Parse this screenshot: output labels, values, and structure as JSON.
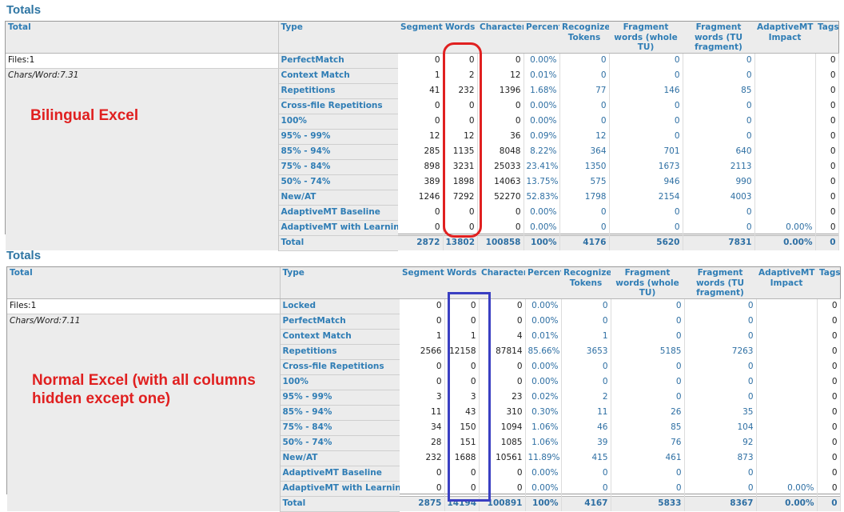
{
  "headers": [
    "Total",
    "Type",
    "Segments",
    "Words",
    "Characters",
    "Percent",
    "Recognized Tokens",
    "Fragment words (whole TU)",
    "Fragment words (TU fragment)",
    "AdaptiveMT Impact",
    "Tags"
  ],
  "reports": [
    {
      "title": "Totals",
      "files": "Files:1",
      "chars_per_word": "Chars/Word:7.31",
      "annotation": "Bilingual Excel",
      "rows": [
        {
          "type": "PerfectMatch",
          "segments": "0",
          "words": "0",
          "characters": "0",
          "percent": "0.00%",
          "tokens": "0",
          "frag_whole": "0",
          "frag_tu": "0",
          "impact": "",
          "tags": "0"
        },
        {
          "type": "Context Match",
          "segments": "1",
          "words": "2",
          "characters": "12",
          "percent": "0.01%",
          "tokens": "0",
          "frag_whole": "0",
          "frag_tu": "0",
          "impact": "",
          "tags": "0"
        },
        {
          "type": "Repetitions",
          "segments": "41",
          "words": "232",
          "characters": "1396",
          "percent": "1.68%",
          "tokens": "77",
          "frag_whole": "146",
          "frag_tu": "85",
          "impact": "",
          "tags": "0"
        },
        {
          "type": "Cross-file Repetitions",
          "segments": "0",
          "words": "0",
          "characters": "0",
          "percent": "0.00%",
          "tokens": "0",
          "frag_whole": "0",
          "frag_tu": "0",
          "impact": "",
          "tags": "0"
        },
        {
          "type": "100%",
          "segments": "0",
          "words": "0",
          "characters": "0",
          "percent": "0.00%",
          "tokens": "0",
          "frag_whole": "0",
          "frag_tu": "0",
          "impact": "",
          "tags": "0"
        },
        {
          "type": "95% - 99%",
          "segments": "12",
          "words": "12",
          "characters": "36",
          "percent": "0.09%",
          "tokens": "12",
          "frag_whole": "0",
          "frag_tu": "0",
          "impact": "",
          "tags": "0"
        },
        {
          "type": "85% - 94%",
          "segments": "285",
          "words": "1135",
          "characters": "8048",
          "percent": "8.22%",
          "tokens": "364",
          "frag_whole": "701",
          "frag_tu": "640",
          "impact": "",
          "tags": "0"
        },
        {
          "type": "75% - 84%",
          "segments": "898",
          "words": "3231",
          "characters": "25033",
          "percent": "23.41%",
          "tokens": "1350",
          "frag_whole": "1673",
          "frag_tu": "2113",
          "impact": "",
          "tags": "0"
        },
        {
          "type": "50% - 74%",
          "segments": "389",
          "words": "1898",
          "characters": "14063",
          "percent": "13.75%",
          "tokens": "575",
          "frag_whole": "946",
          "frag_tu": "990",
          "impact": "",
          "tags": "0"
        },
        {
          "type": "New/AT",
          "segments": "1246",
          "words": "7292",
          "characters": "52270",
          "percent": "52.83%",
          "tokens": "1798",
          "frag_whole": "2154",
          "frag_tu": "4003",
          "impact": "",
          "tags": "0"
        },
        {
          "type": "AdaptiveMT Baseline",
          "segments": "0",
          "words": "0",
          "characters": "0",
          "percent": "0.00%",
          "tokens": "0",
          "frag_whole": "0",
          "frag_tu": "0",
          "impact": "",
          "tags": "0"
        },
        {
          "type": "AdaptiveMT with Learnings",
          "segments": "0",
          "words": "0",
          "characters": "0",
          "percent": "0.00%",
          "tokens": "0",
          "frag_whole": "0",
          "frag_tu": "0",
          "impact": "0.00%",
          "tags": "0"
        }
      ],
      "total": {
        "type": "Total",
        "segments": "2872",
        "words": "13802",
        "characters": "100858",
        "percent": "100%",
        "tokens": "4176",
        "frag_whole": "5620",
        "frag_tu": "7831",
        "impact": "0.00%",
        "tags": "0"
      }
    },
    {
      "title": "Totals",
      "files": "Files:1",
      "chars_per_word": "Chars/Word:7.11",
      "annotation": "Normal Excel (with all columns hidden except one)",
      "rows": [
        {
          "type": "Locked",
          "segments": "0",
          "words": "0",
          "characters": "0",
          "percent": "0.00%",
          "tokens": "0",
          "frag_whole": "0",
          "frag_tu": "0",
          "impact": "",
          "tags": "0"
        },
        {
          "type": "PerfectMatch",
          "segments": "0",
          "words": "0",
          "characters": "0",
          "percent": "0.00%",
          "tokens": "0",
          "frag_whole": "0",
          "frag_tu": "0",
          "impact": "",
          "tags": "0"
        },
        {
          "type": "Context Match",
          "segments": "1",
          "words": "1",
          "characters": "4",
          "percent": "0.01%",
          "tokens": "1",
          "frag_whole": "0",
          "frag_tu": "0",
          "impact": "",
          "tags": "0"
        },
        {
          "type": "Repetitions",
          "segments": "2566",
          "words": "12158",
          "characters": "87814",
          "percent": "85.66%",
          "tokens": "3653",
          "frag_whole": "5185",
          "frag_tu": "7263",
          "impact": "",
          "tags": "0"
        },
        {
          "type": "Cross-file Repetitions",
          "segments": "0",
          "words": "0",
          "characters": "0",
          "percent": "0.00%",
          "tokens": "0",
          "frag_whole": "0",
          "frag_tu": "0",
          "impact": "",
          "tags": "0"
        },
        {
          "type": "100%",
          "segments": "0",
          "words": "0",
          "characters": "0",
          "percent": "0.00%",
          "tokens": "0",
          "frag_whole": "0",
          "frag_tu": "0",
          "impact": "",
          "tags": "0"
        },
        {
          "type": "95% - 99%",
          "segments": "3",
          "words": "3",
          "characters": "23",
          "percent": "0.02%",
          "tokens": "2",
          "frag_whole": "0",
          "frag_tu": "0",
          "impact": "",
          "tags": "0"
        },
        {
          "type": "85% - 94%",
          "segments": "11",
          "words": "43",
          "characters": "310",
          "percent": "0.30%",
          "tokens": "11",
          "frag_whole": "26",
          "frag_tu": "35",
          "impact": "",
          "tags": "0"
        },
        {
          "type": "75% - 84%",
          "segments": "34",
          "words": "150",
          "characters": "1094",
          "percent": "1.06%",
          "tokens": "46",
          "frag_whole": "85",
          "frag_tu": "104",
          "impact": "",
          "tags": "0"
        },
        {
          "type": "50% - 74%",
          "segments": "28",
          "words": "151",
          "characters": "1085",
          "percent": "1.06%",
          "tokens": "39",
          "frag_whole": "76",
          "frag_tu": "92",
          "impact": "",
          "tags": "0"
        },
        {
          "type": "New/AT",
          "segments": "232",
          "words": "1688",
          "characters": "10561",
          "percent": "11.89%",
          "tokens": "415",
          "frag_whole": "461",
          "frag_tu": "873",
          "impact": "",
          "tags": "0"
        },
        {
          "type": "AdaptiveMT Baseline",
          "segments": "0",
          "words": "0",
          "characters": "0",
          "percent": "0.00%",
          "tokens": "0",
          "frag_whole": "0",
          "frag_tu": "0",
          "impact": "",
          "tags": "0"
        },
        {
          "type": "AdaptiveMT with Learnings",
          "segments": "0",
          "words": "0",
          "characters": "0",
          "percent": "0.00%",
          "tokens": "0",
          "frag_whole": "0",
          "frag_tu": "0",
          "impact": "0.00%",
          "tags": "0"
        }
      ],
      "total": {
        "type": "Total",
        "segments": "2875",
        "words": "14194",
        "characters": "100891",
        "percent": "100%",
        "tokens": "4167",
        "frag_whole": "5833",
        "frag_tu": "8367",
        "impact": "0.00%",
        "tags": "0"
      }
    }
  ],
  "colors": {
    "title": "#2e75a3",
    "type_label": "#2f7db5",
    "annotation": "#e02020",
    "highlight_top": "#e02020",
    "highlight_bottom": "#3a3fc2"
  }
}
